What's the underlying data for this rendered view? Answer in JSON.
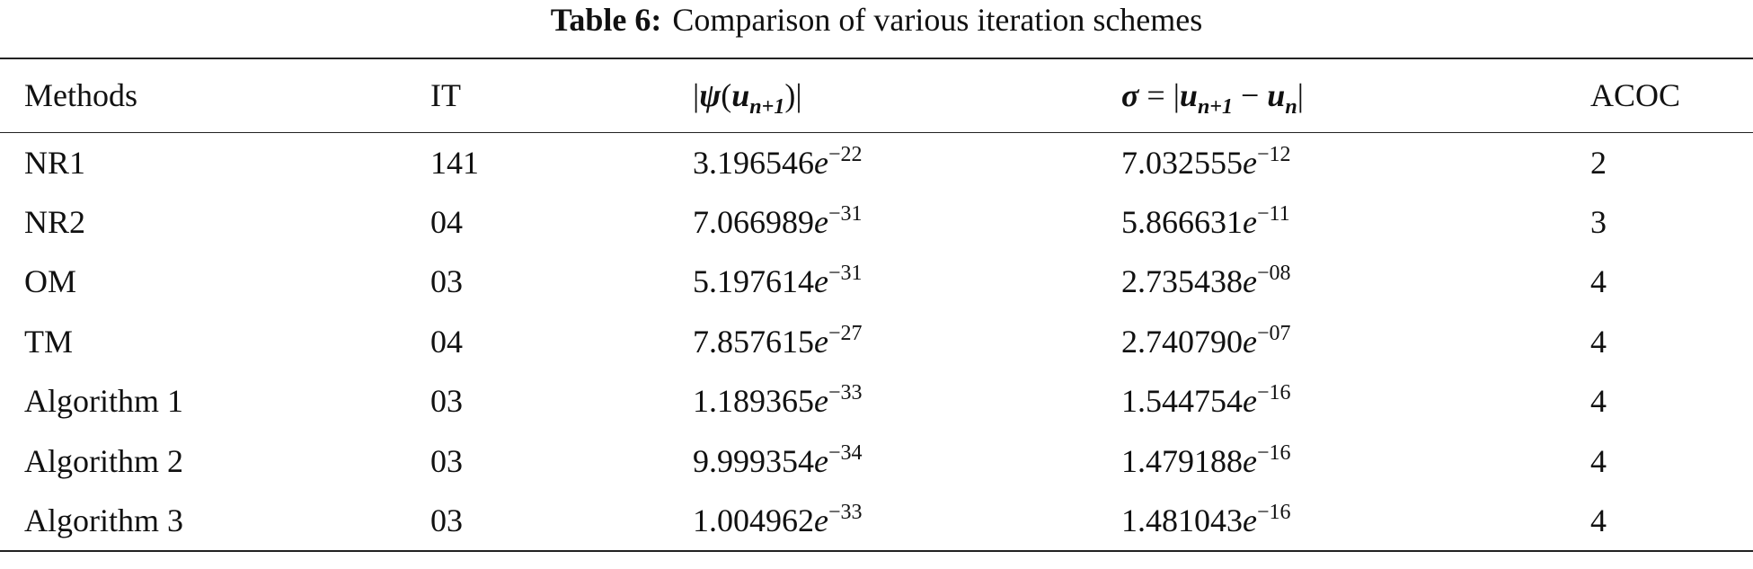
{
  "title": {
    "label": "Table 6:",
    "text": "Comparison of various iteration schemes"
  },
  "table": {
    "columns": [
      "Methods",
      "IT",
      {
        "parts": [
          "|",
          "ψ",
          "(",
          "u",
          "n+1",
          ")|"
        ]
      },
      {
        "parts": [
          "σ",
          " = |",
          "u",
          "n+1",
          " − ",
          "u",
          "n",
          "|"
        ]
      },
      "ACOC"
    ],
    "rows": [
      [
        "NR1",
        "141",
        {
          "m": "3.196546",
          "e": "e",
          "x": "−22"
        },
        {
          "m": "7.032555",
          "e": "e",
          "x": "−12"
        },
        "2"
      ],
      [
        "NR2",
        "04",
        {
          "m": "7.066989",
          "e": "e",
          "x": "−31"
        },
        {
          "m": "5.866631",
          "e": "e",
          "x": "−11"
        },
        "3"
      ],
      [
        "OM",
        "03",
        {
          "m": "5.197614",
          "e": "e",
          "x": "−31"
        },
        {
          "m": "2.735438",
          "e": "e",
          "x": "−08"
        },
        "4"
      ],
      [
        "TM",
        "04",
        {
          "m": "7.857615",
          "e": "e",
          "x": "−27"
        },
        {
          "m": "2.740790",
          "e": "e",
          "x": "−07"
        },
        "4"
      ],
      [
        "Algorithm 1",
        "03",
        {
          "m": "1.189365",
          "e": "e",
          "x": "−33"
        },
        {
          "m": "1.544754",
          "e": "e",
          "x": "−16"
        },
        "4"
      ],
      [
        "Algorithm 2",
        "03",
        {
          "m": "9.999354",
          "e": "e",
          "x": "−34"
        },
        {
          "m": "1.479188",
          "e": "e",
          "x": "−16"
        },
        "4"
      ],
      [
        "Algorithm 3",
        "03",
        {
          "m": "1.004962",
          "e": "e",
          "x": "−33"
        },
        {
          "m": "1.481043",
          "e": "e",
          "x": "−16"
        },
        "4"
      ]
    ]
  }
}
